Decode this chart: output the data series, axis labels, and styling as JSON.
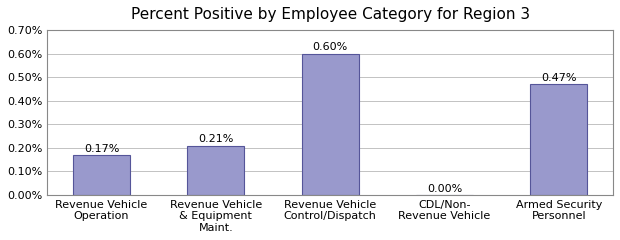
{
  "title": "Percent Positive by Employee Category for Region 3",
  "categories": [
    "Revenue Vehicle\nOperation",
    "Revenue Vehicle\n& Equipment\nMaint.",
    "Revenue Vehicle\nControl/Dispatch",
    "CDL/Non-\nRevenue Vehicle",
    "Armed Security\nPersonnel"
  ],
  "values": [
    0.17,
    0.21,
    0.6,
    0.0,
    0.47
  ],
  "bar_color": "#9999cc",
  "bar_edgecolor": "#555599",
  "ylim": [
    0,
    0.7
  ],
  "yticks": [
    0.0,
    0.1,
    0.2,
    0.3,
    0.4,
    0.5,
    0.6,
    0.7
  ],
  "ytick_labels": [
    "0.00%",
    "0.10%",
    "0.20%",
    "0.30%",
    "0.40%",
    "0.50%",
    "0.60%",
    "0.70%"
  ],
  "bar_labels": [
    "0.17%",
    "0.21%",
    "0.60%",
    "0.00%",
    "0.47%"
  ],
  "title_fontsize": 11,
  "tick_fontsize": 8,
  "label_fontsize": 8,
  "background_color": "#ffffff",
  "grid_color": "#aaaaaa"
}
